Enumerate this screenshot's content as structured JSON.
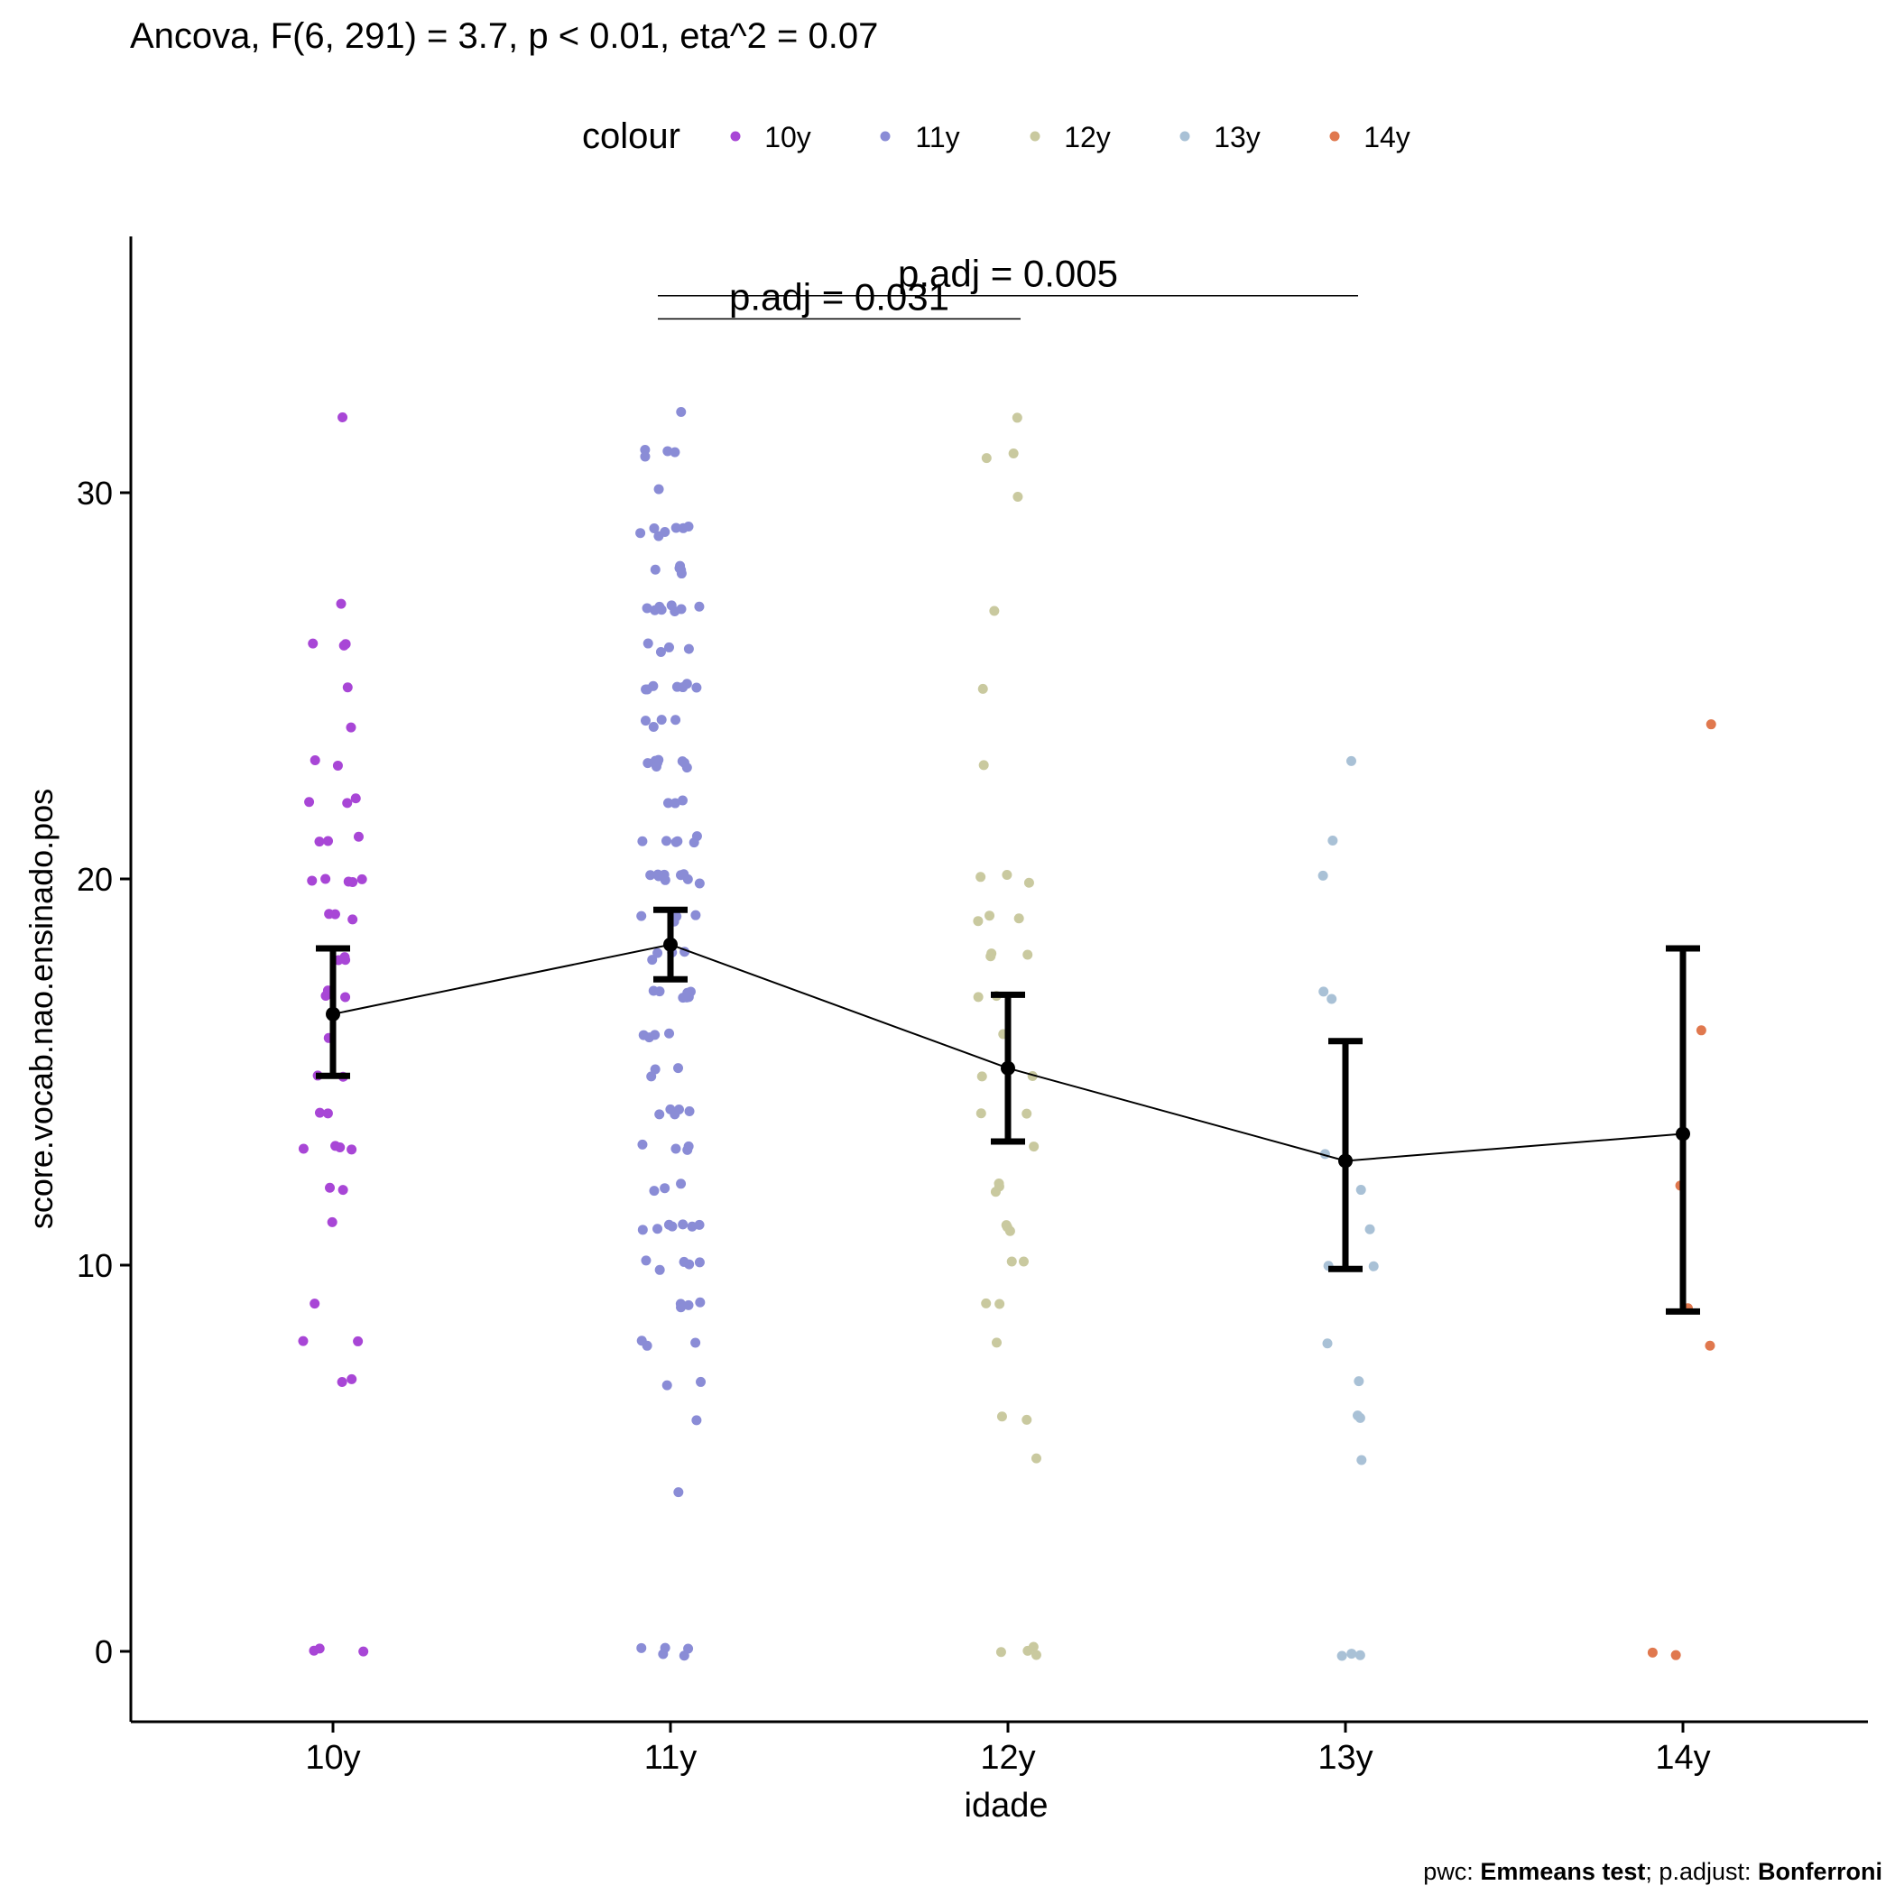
{
  "chart_data": {
    "type": "scatter",
    "title": "Ancova, F(6, 291) = 3.7, p < 0.01, eta^2 = 0.07",
    "xlabel": "idade",
    "ylabel": "score.vocab.nao.ensinado.pos",
    "categories": [
      "10y",
      "11y",
      "12y",
      "13y",
      "14y"
    ],
    "yticks": [
      0,
      10,
      20,
      30
    ],
    "ylim": [
      -1.8,
      36.6
    ],
    "grid": false,
    "legend": {
      "title": "colour",
      "placement": "top",
      "entries": [
        "10y",
        "11y",
        "12y",
        "13y",
        "14y"
      ]
    },
    "colors": {
      "10y": "#A846D6",
      "11y": "#8A8CD6",
      "12y": "#C9C99F",
      "13y": "#A9C1D6",
      "14y": "#E0784E",
      "mean": "#000000"
    },
    "points": {
      "10y": [
        32,
        27,
        26,
        26,
        26,
        25,
        24,
        23,
        23,
        22,
        22,
        22,
        21,
        21,
        21,
        20,
        20,
        20,
        20,
        20,
        19,
        19,
        19,
        18,
        18,
        18,
        17,
        17,
        17,
        16,
        15,
        15,
        14,
        14,
        13,
        13,
        13,
        13,
        12,
        12,
        11,
        9,
        8,
        8,
        7,
        7,
        0,
        0,
        0
      ],
      "11y": [
        32,
        31,
        31,
        31,
        31,
        30,
        29,
        29,
        29,
        29,
        29,
        29,
        29,
        28,
        28,
        28,
        28,
        28,
        27,
        27,
        27,
        27,
        27,
        27,
        27,
        27,
        26,
        26,
        26,
        26,
        25,
        25,
        25,
        25,
        25,
        25,
        25,
        24,
        24,
        24,
        24,
        23,
        23,
        23,
        23,
        23,
        23,
        23,
        23,
        22,
        22,
        22,
        21,
        21,
        21,
        21,
        21,
        21,
        20,
        20,
        20,
        20,
        20,
        20,
        20,
        20,
        20,
        19,
        19,
        19,
        19,
        18,
        18,
        18,
        18,
        17,
        17,
        17,
        17,
        17,
        17,
        17,
        16,
        16,
        16,
        16,
        15,
        15,
        15,
        14,
        14,
        14,
        14,
        14,
        13,
        13,
        13,
        13,
        12,
        12,
        12,
        11,
        11,
        11,
        11,
        11,
        11,
        11,
        10,
        10,
        10,
        10,
        10,
        9,
        9,
        9,
        9,
        8,
        8,
        8,
        7,
        7,
        6,
        4,
        0,
        0,
        0,
        0,
        0
      ],
      "12y": [
        32,
        31,
        31,
        30,
        27,
        25,
        23,
        20,
        20,
        20,
        19,
        19,
        19,
        18,
        18,
        18,
        17,
        17,
        16,
        15,
        15,
        15,
        14,
        14,
        13,
        12,
        12,
        12,
        11,
        11,
        11,
        10,
        10,
        9,
        9,
        8,
        6,
        6,
        5,
        0,
        0,
        0,
        0
      ],
      "13y": [
        23,
        21,
        20,
        17,
        17,
        13,
        12,
        11,
        10,
        10,
        8,
        7,
        6,
        6,
        5,
        0,
        0,
        0
      ],
      "14y": [
        24,
        16,
        12,
        9,
        8,
        0,
        0
      ]
    },
    "means": [
      16.5,
      18.3,
      15.1,
      12.7,
      13.4
    ],
    "ci_lower": [
      14.9,
      17.4,
      13.2,
      9.9,
      8.8
    ],
    "ci_upper": [
      18.2,
      19.2,
      17.0,
      15.8,
      18.2
    ],
    "annotations": [
      {
        "text": "p.adj = 0.031",
        "from": "11y",
        "to": "12y",
        "y": 34.5
      },
      {
        "text": "p.adj = 0.005",
        "from": "11y",
        "to": "13y",
        "y": 35.1
      }
    ]
  },
  "caption": {
    "prefix": "pwc: ",
    "method": "Emmeans test",
    "sep": "; p.adjust: ",
    "adjust": "Bonferroni"
  }
}
